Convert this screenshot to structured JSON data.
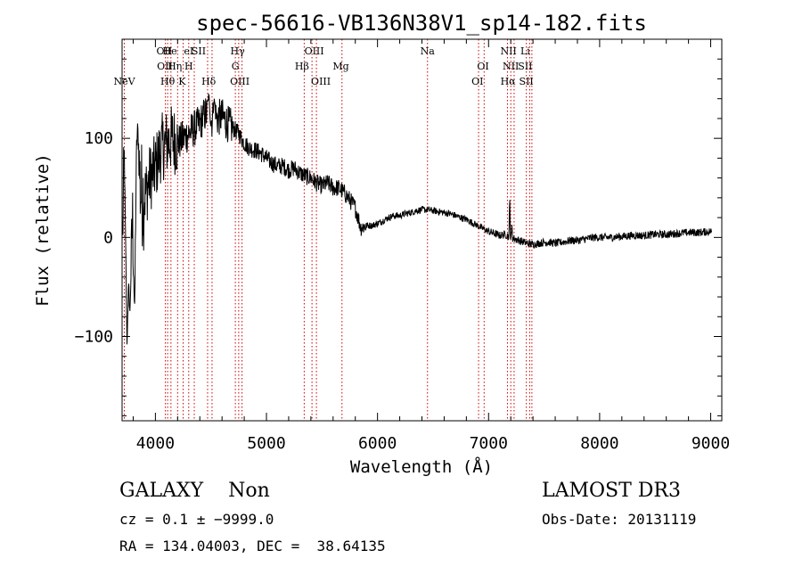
{
  "chart_data": {
    "type": "line",
    "title": "spec-56616-VB136N38V1_sp14-182.fits",
    "xlabel": "Wavelength (Å)",
    "ylabel": "Flux (relative)",
    "xlim": [
      3700,
      9100
    ],
    "ylim": [
      -185,
      200
    ],
    "xticks": [
      4000,
      5000,
      6000,
      7000,
      8000,
      9000
    ],
    "xtick_labels": [
      "4000",
      "5000",
      "6000",
      "7000",
      "8000",
      "9000"
    ],
    "yticks": [
      -100,
      0,
      100
    ],
    "ytick_labels": [
      "−100",
      "0",
      "100"
    ],
    "series": [
      {
        "name": "flux",
        "anchors": [
          [
            3705,
            0
          ],
          [
            3730,
            95
          ],
          [
            3760,
            40
          ],
          [
            3800,
            30
          ],
          [
            3850,
            50
          ],
          [
            3900,
            40
          ],
          [
            3950,
            60
          ],
          [
            4000,
            70
          ],
          [
            4050,
            90
          ],
          [
            4100,
            95
          ],
          [
            4150,
            100
          ],
          [
            4200,
            95
          ],
          [
            4250,
            100
          ],
          [
            4300,
            105
          ],
          [
            4350,
            110
          ],
          [
            4400,
            115
          ],
          [
            4450,
            125
          ],
          [
            4500,
            118
          ],
          [
            4550,
            120
          ],
          [
            4600,
            122
          ],
          [
            4650,
            115
          ],
          [
            4700,
            110
          ],
          [
            4750,
            105
          ],
          [
            4800,
            95
          ],
          [
            4850,
            90
          ],
          [
            4900,
            88
          ],
          [
            4950,
            85
          ],
          [
            5000,
            80
          ],
          [
            5050,
            75
          ],
          [
            5100,
            72
          ],
          [
            5150,
            72
          ],
          [
            5200,
            68
          ],
          [
            5250,
            70
          ],
          [
            5300,
            65
          ],
          [
            5350,
            62
          ],
          [
            5400,
            60
          ],
          [
            5450,
            55
          ],
          [
            5500,
            52
          ],
          [
            5550,
            55
          ],
          [
            5600,
            50
          ],
          [
            5650,
            50
          ],
          [
            5700,
            45
          ],
          [
            5750,
            38
          ],
          [
            5800,
            30
          ],
          [
            5850,
            10
          ],
          [
            5900,
            12
          ],
          [
            5950,
            12
          ],
          [
            6000,
            14
          ],
          [
            6050,
            17
          ],
          [
            6100,
            20
          ],
          [
            6150,
            22
          ],
          [
            6200,
            22
          ],
          [
            6250,
            24
          ],
          [
            6300,
            25
          ],
          [
            6350,
            27
          ],
          [
            6400,
            28
          ],
          [
            6450,
            28
          ],
          [
            6500,
            27
          ],
          [
            6550,
            26
          ],
          [
            6600,
            25
          ],
          [
            6650,
            24
          ],
          [
            6700,
            22
          ],
          [
            6750,
            20
          ],
          [
            6800,
            18
          ],
          [
            6850,
            15
          ],
          [
            6900,
            12
          ],
          [
            6950,
            9
          ],
          [
            7000,
            6
          ],
          [
            7050,
            4
          ],
          [
            7100,
            2
          ],
          [
            7150,
            3
          ],
          [
            7200,
            0
          ],
          [
            7250,
            -2
          ],
          [
            7300,
            -4
          ],
          [
            7350,
            -6
          ],
          [
            7400,
            -7
          ],
          [
            7450,
            -6
          ],
          [
            7500,
            -5
          ],
          [
            7550,
            -5
          ],
          [
            7600,
            -6
          ],
          [
            7650,
            -5
          ],
          [
            7700,
            -4
          ],
          [
            7750,
            -3
          ],
          [
            7800,
            -3
          ],
          [
            7850,
            -2
          ],
          [
            7900,
            -1
          ],
          [
            7950,
            0
          ],
          [
            8000,
            0
          ],
          [
            8100,
            0
          ],
          [
            8200,
            1
          ],
          [
            8300,
            2
          ],
          [
            8400,
            2
          ],
          [
            8500,
            3
          ],
          [
            8600,
            3
          ],
          [
            8700,
            4
          ],
          [
            8800,
            5
          ],
          [
            8900,
            5
          ],
          [
            9000,
            6
          ]
        ],
        "features": [
          [
            3730,
            95,
            25
          ],
          [
            3745,
            -115,
            25
          ],
          [
            3770,
            -80,
            25
          ],
          [
            3812,
            -75,
            20
          ],
          [
            3840,
            115,
            25
          ],
          [
            4480,
            145,
            20
          ],
          [
            4530,
            140,
            20
          ],
          [
            7190,
            45,
            6
          ],
          [
            7210,
            15,
            6
          ]
        ]
      }
    ],
    "lines": [
      {
        "label": "NeV",
        "x": 3720,
        "tier": 2
      },
      {
        "label": "OII",
        "x": 4080,
        "tier": 0
      },
      {
        "label": "OII",
        "x": 4085,
        "tier": 1
      },
      {
        "label": "Hθ",
        "x": 4110,
        "tier": 2
      },
      {
        "label": "He",
        "x": 4130,
        "tier": 0
      },
      {
        "label": "Hη",
        "x": 4175,
        "tier": 1
      },
      {
        "label": "K",
        "x": 4240,
        "tier": 2
      },
      {
        "label": "H",
        "x": 4300,
        "tier": 1
      },
      {
        "label": "eI",
        "x": 4300,
        "tier": 0
      },
      {
        "label": "SII",
        "x": 4390,
        "tier": 0
      },
      {
        "label": "Hδ",
        "x": 4480,
        "tier": 2
      },
      {
        "label": "Hγ",
        "x": 4740,
        "tier": 0
      },
      {
        "label": "G",
        "x": 4720,
        "tier": 1
      },
      {
        "label": "OIII",
        "x": 4760,
        "tier": 2
      },
      {
        "label": "OIII",
        "x": 5430,
        "tier": 0
      },
      {
        "label": "Hβ",
        "x": 5320,
        "tier": 1
      },
      {
        "label": "OIII",
        "x": 5490,
        "tier": 2
      },
      {
        "label": "Mg",
        "x": 5670,
        "tier": 1
      },
      {
        "label": "Na",
        "x": 6450,
        "tier": 0
      },
      {
        "label": "OI",
        "x": 6950,
        "tier": 1
      },
      {
        "label": "OI",
        "x": 6900,
        "tier": 2
      },
      {
        "label": "NII",
        "x": 7180,
        "tier": 0
      },
      {
        "label": "NII",
        "x": 7200,
        "tier": 1
      },
      {
        "label": "Hα",
        "x": 7175,
        "tier": 2
      },
      {
        "label": "Li",
        "x": 7330,
        "tier": 0
      },
      {
        "label": "SII",
        "x": 7330,
        "tier": 1
      },
      {
        "label": "SII",
        "x": 7340,
        "tier": 2
      }
    ],
    "line_positions": [
      3720,
      4090,
      4110,
      4140,
      4200,
      4250,
      4300,
      4350,
      4470,
      4510,
      4720,
      4750,
      4780,
      5340,
      5410,
      5450,
      5680,
      6450,
      6910,
      6960,
      7170,
      7200,
      7230,
      7340,
      7370,
      7390
    ],
    "line_color": "#cc0000"
  },
  "info": {
    "class_line": "GALAXY    Non",
    "survey": "LAMOST DR3",
    "redshift": "cz = 0.1 ± −9999.0",
    "obs_date": "Obs-Date: 20131119",
    "coords": "RA = 134.04003, DEC =  38.64135"
  }
}
